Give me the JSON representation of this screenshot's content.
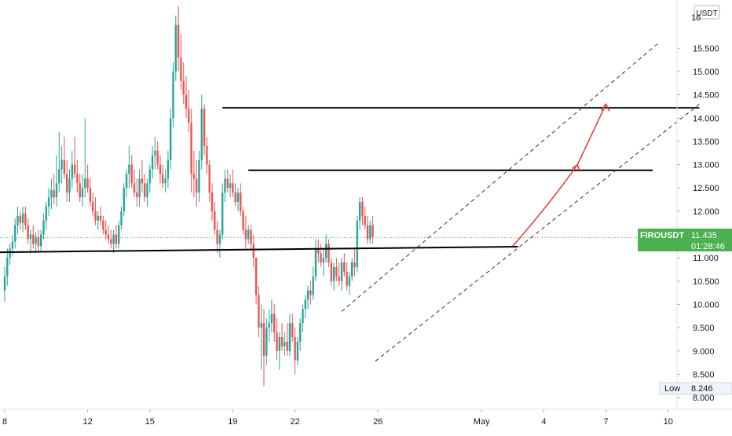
{
  "chart_data": {
    "type": "candlestick",
    "symbol": "FIROUSDT",
    "currency": "USDT",
    "colors": {
      "up": "#26a69a",
      "down": "#ef5350",
      "price_tag": "#4caf50",
      "level": "#000000",
      "projection": "#e53935",
      "channel": "#333333"
    },
    "y_range": [
      7.9,
      16.4
    ],
    "y_ticks": [
      15.5,
      15.0,
      14.5,
      14.0,
      13.5,
      13.0,
      12.5,
      12.0,
      11.0,
      10.5,
      10.0,
      9.5,
      9.0,
      8.5,
      8.0
    ],
    "y_tick_labels": [
      "15.500",
      "15.000",
      "14.500",
      "14.000",
      "13.500",
      "13.000",
      "12.500",
      "12.000",
      "11.000",
      "10.500",
      "10.000",
      "9.500",
      "9.000",
      "8.500",
      "8.000"
    ],
    "y_top_partial_label": "16",
    "x_ticks": [
      {
        "label": "8",
        "bar": 0
      },
      {
        "label": "12",
        "bar": 32
      },
      {
        "label": "15",
        "bar": 56
      },
      {
        "label": "19",
        "bar": 88
      },
      {
        "label": "22",
        "bar": 112
      },
      {
        "label": "26",
        "bar": 144
      },
      {
        "label": "May",
        "bar": 184
      },
      {
        "label": "4",
        "bar": 208
      },
      {
        "label": "7",
        "bar": 232
      },
      {
        "label": "10",
        "bar": 256
      }
    ],
    "last_price": {
      "label": "FIROUSDT",
      "value": "11.435",
      "countdown": "01:28:46",
      "price": 11.435
    },
    "low_marker": {
      "label": "Low",
      "value": "8.246",
      "price": 8.246
    },
    "candles": [
      [
        10.3,
        10.8,
        10.05,
        10.6
      ],
      [
        10.6,
        11.2,
        10.4,
        11.0
      ],
      [
        11.0,
        11.3,
        10.85,
        11.2
      ],
      [
        11.2,
        11.5,
        11.05,
        11.35
      ],
      [
        11.35,
        11.85,
        11.2,
        11.7
      ],
      [
        11.7,
        12.1,
        11.5,
        11.9
      ],
      [
        11.9,
        12.0,
        11.6,
        11.75
      ],
      [
        11.75,
        12.1,
        11.55,
        11.95
      ],
      [
        11.95,
        12.1,
        11.6,
        11.7
      ],
      [
        11.7,
        11.85,
        11.3,
        11.4
      ],
      [
        11.4,
        11.6,
        11.1,
        11.5
      ],
      [
        11.5,
        11.7,
        11.2,
        11.3
      ],
      [
        11.3,
        11.55,
        11.1,
        11.45
      ],
      [
        11.45,
        11.6,
        11.15,
        11.25
      ],
      [
        11.25,
        11.6,
        11.15,
        11.5
      ],
      [
        11.5,
        11.95,
        11.4,
        11.8
      ],
      [
        11.8,
        12.2,
        11.6,
        12.1
      ],
      [
        12.1,
        12.5,
        11.9,
        12.3
      ],
      [
        12.3,
        12.7,
        12.05,
        12.45
      ],
      [
        12.45,
        12.8,
        12.15,
        12.3
      ],
      [
        12.3,
        13.2,
        12.1,
        12.6
      ],
      [
        12.6,
        13.7,
        12.4,
        12.9
      ],
      [
        12.9,
        13.4,
        12.6,
        13.1
      ],
      [
        13.1,
        13.6,
        12.7,
        12.8
      ],
      [
        12.8,
        13.1,
        12.2,
        12.4
      ],
      [
        12.4,
        12.9,
        12.2,
        12.7
      ],
      [
        12.7,
        13.3,
        12.5,
        13.0
      ],
      [
        13.0,
        13.6,
        12.7,
        12.8
      ],
      [
        12.8,
        13.1,
        12.4,
        12.6
      ],
      [
        12.6,
        12.8,
        12.2,
        12.3
      ],
      [
        12.3,
        12.8,
        12.1,
        12.5
      ],
      [
        12.5,
        14.0,
        12.3,
        12.7
      ],
      [
        12.7,
        13.0,
        12.4,
        12.5
      ],
      [
        12.5,
        12.7,
        12.1,
        12.2
      ],
      [
        12.2,
        12.4,
        11.9,
        12.0
      ],
      [
        12.0,
        12.3,
        11.7,
        11.8
      ],
      [
        11.8,
        12.0,
        11.6,
        11.9
      ],
      [
        11.9,
        12.1,
        11.7,
        11.8
      ],
      [
        11.8,
        11.9,
        11.5,
        11.6
      ],
      [
        11.6,
        11.8,
        11.4,
        11.5
      ],
      [
        11.5,
        11.7,
        11.3,
        11.4
      ],
      [
        11.4,
        11.6,
        11.2,
        11.3
      ],
      [
        11.3,
        11.6,
        11.1,
        11.5
      ],
      [
        11.5,
        11.7,
        11.2,
        11.3
      ],
      [
        11.3,
        11.8,
        11.2,
        11.7
      ],
      [
        11.7,
        12.1,
        11.6,
        12.0
      ],
      [
        12.0,
        12.6,
        11.9,
        12.5
      ],
      [
        12.5,
        12.9,
        12.3,
        12.8
      ],
      [
        12.8,
        13.4,
        12.5,
        13.0
      ],
      [
        13.0,
        13.2,
        12.5,
        12.6
      ],
      [
        12.6,
        12.9,
        12.3,
        12.4
      ],
      [
        12.4,
        12.7,
        12.1,
        12.3
      ],
      [
        12.3,
        12.9,
        12.1,
        12.7
      ],
      [
        12.7,
        13.1,
        12.4,
        12.6
      ],
      [
        12.6,
        12.8,
        12.2,
        12.3
      ],
      [
        12.3,
        12.7,
        12.1,
        12.6
      ],
      [
        12.6,
        13.0,
        12.4,
        12.9
      ],
      [
        12.9,
        13.4,
        12.7,
        13.2
      ],
      [
        13.2,
        13.6,
        12.9,
        13.3
      ],
      [
        13.3,
        13.5,
        12.9,
        13.0
      ],
      [
        13.0,
        13.2,
        12.6,
        12.8
      ],
      [
        12.8,
        13.0,
        12.5,
        12.6
      ],
      [
        12.6,
        12.9,
        12.4,
        12.7
      ],
      [
        12.7,
        13.3,
        12.5,
        13.1
      ],
      [
        13.1,
        14.2,
        12.9,
        14.0
      ],
      [
        14.0,
        15.2,
        13.8,
        15.0
      ],
      [
        15.0,
        16.2,
        14.8,
        16.0
      ],
      [
        16.0,
        16.4,
        15.0,
        15.3
      ],
      [
        15.3,
        15.8,
        14.6,
        14.8
      ],
      [
        14.8,
        15.2,
        14.3,
        14.5
      ],
      [
        14.5,
        14.9,
        14.0,
        14.2
      ],
      [
        14.2,
        14.6,
        13.7,
        13.9
      ],
      [
        13.9,
        14.2,
        12.4,
        12.8
      ],
      [
        12.8,
        13.3,
        12.3,
        12.7
      ],
      [
        12.7,
        13.1,
        12.1,
        12.4
      ],
      [
        12.4,
        13.3,
        12.2,
        13.1
      ],
      [
        13.1,
        14.5,
        12.9,
        14.2
      ],
      [
        14.2,
        14.3,
        13.2,
        13.4
      ],
      [
        13.4,
        13.6,
        12.8,
        13.0
      ],
      [
        13.0,
        13.1,
        12.2,
        12.4
      ],
      [
        12.4,
        12.6,
        11.8,
        12.0
      ],
      [
        12.0,
        12.2,
        11.5,
        11.6
      ],
      [
        11.6,
        11.8,
        11.1,
        11.3
      ],
      [
        11.3,
        11.6,
        11.0,
        11.5
      ],
      [
        11.5,
        12.6,
        11.4,
        12.4
      ],
      [
        12.4,
        12.9,
        12.2,
        12.7
      ],
      [
        12.7,
        12.9,
        12.4,
        12.5
      ],
      [
        12.5,
        12.8,
        12.3,
        12.6
      ],
      [
        12.6,
        12.9,
        12.3,
        12.4
      ],
      [
        12.4,
        12.6,
        12.1,
        12.2
      ],
      [
        12.2,
        12.5,
        12.0,
        12.4
      ],
      [
        12.4,
        12.6,
        11.9,
        12.0
      ],
      [
        12.0,
        12.1,
        11.5,
        11.6
      ],
      [
        11.6,
        11.9,
        11.2,
        11.4
      ],
      [
        11.4,
        11.7,
        11.3,
        11.6
      ],
      [
        11.6,
        11.7,
        11.2,
        11.3
      ],
      [
        11.3,
        11.5,
        10.8,
        11.0
      ],
      [
        11.0,
        11.0,
        10.0,
        10.2
      ],
      [
        10.2,
        10.4,
        9.3,
        9.5
      ],
      [
        9.5,
        10.0,
        8.6,
        9.6
      ],
      [
        9.6,
        9.9,
        8.25,
        8.9
      ],
      [
        8.9,
        9.7,
        8.7,
        9.5
      ],
      [
        9.5,
        9.9,
        9.2,
        9.6
      ],
      [
        9.6,
        10.1,
        9.4,
        9.8
      ],
      [
        9.8,
        10.0,
        9.2,
        9.4
      ],
      [
        9.4,
        9.7,
        8.8,
        9.0
      ],
      [
        9.0,
        9.4,
        8.6,
        9.3
      ],
      [
        9.3,
        9.6,
        9.0,
        9.1
      ],
      [
        9.1,
        9.4,
        8.9,
        9.2
      ],
      [
        9.2,
        9.6,
        8.9,
        9.0
      ],
      [
        9.0,
        9.8,
        8.9,
        9.6
      ],
      [
        9.6,
        9.8,
        9.2,
        9.3
      ],
      [
        9.3,
        9.5,
        8.5,
        8.8
      ],
      [
        8.8,
        9.3,
        8.7,
        9.2
      ],
      [
        9.2,
        9.7,
        9.0,
        9.6
      ],
      [
        9.6,
        10.0,
        9.4,
        9.9
      ],
      [
        9.9,
        10.2,
        9.7,
        10.1
      ],
      [
        10.1,
        10.4,
        9.9,
        10.3
      ],
      [
        10.3,
        10.5,
        10.0,
        10.2
      ],
      [
        10.2,
        10.8,
        10.1,
        10.6
      ],
      [
        10.6,
        11.4,
        10.5,
        11.2
      ],
      [
        11.2,
        11.4,
        10.9,
        11.1
      ],
      [
        11.1,
        11.3,
        10.8,
        10.9
      ],
      [
        10.9,
        11.2,
        10.6,
        11.0
      ],
      [
        11.0,
        11.5,
        10.9,
        11.3
      ],
      [
        11.3,
        11.4,
        10.8,
        10.9
      ],
      [
        10.9,
        11.0,
        10.4,
        10.5
      ],
      [
        10.5,
        10.9,
        10.3,
        10.8
      ],
      [
        10.8,
        11.0,
        10.5,
        10.6
      ],
      [
        10.6,
        10.9,
        10.4,
        10.5
      ],
      [
        10.5,
        11.0,
        10.3,
        10.9
      ],
      [
        10.9,
        11.1,
        10.6,
        10.7
      ],
      [
        10.7,
        10.9,
        10.3,
        10.4
      ],
      [
        10.4,
        10.7,
        10.2,
        10.6
      ],
      [
        10.6,
        11.0,
        10.5,
        10.9
      ],
      [
        10.9,
        11.2,
        10.6,
        10.8
      ],
      [
        10.8,
        11.9,
        10.7,
        11.8
      ],
      [
        11.8,
        12.3,
        11.6,
        12.2
      ],
      [
        12.2,
        12.3,
        11.7,
        11.9
      ],
      [
        11.9,
        12.1,
        11.6,
        11.7
      ],
      [
        11.7,
        11.9,
        11.3,
        11.4
      ],
      [
        11.4,
        11.8,
        11.3,
        11.7
      ],
      [
        11.7,
        11.9,
        11.3,
        11.44
      ]
    ],
    "levels": [
      {
        "price": 14.22,
        "from_bar": 84,
        "to_bar": 268
      },
      {
        "price": 12.88,
        "from_bar": 94,
        "to_bar": 250
      }
    ],
    "support_line": {
      "from": [
        -2,
        11.12
      ],
      "to": [
        198,
        11.24
      ]
    },
    "channel_lines": [
      {
        "from": [
          130,
          9.85
        ],
        "to": [
          252,
          15.6
        ]
      },
      {
        "from": [
          143,
          8.78
        ],
        "to": [
          268,
          14.3
        ]
      }
    ],
    "projection_path": [
      [
        196,
        11.25
      ],
      [
        214,
        12.5
      ],
      [
        221,
        13.0
      ],
      [
        232,
        14.3
      ]
    ]
  }
}
